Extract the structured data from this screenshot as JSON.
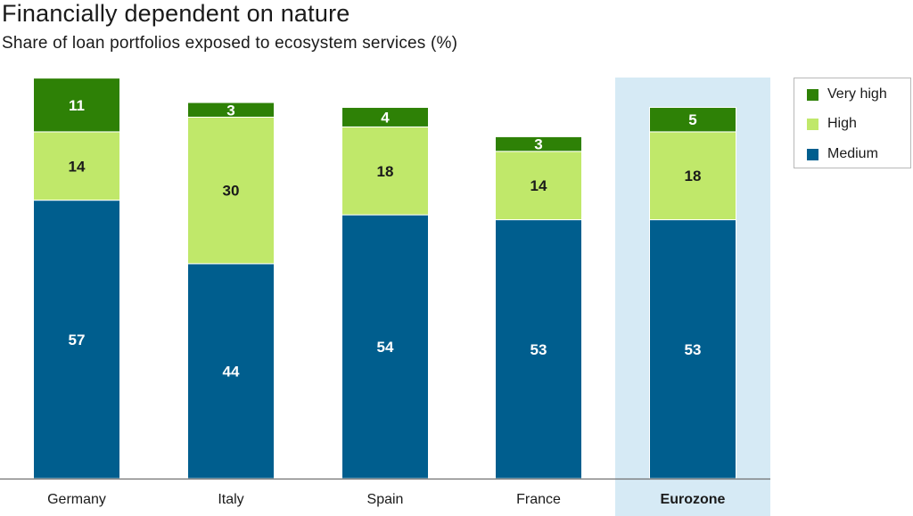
{
  "title": "Financially dependent on nature",
  "subtitle": "Share of loan portfolios exposed to ecosystem services (%)",
  "chart_data": {
    "type": "bar",
    "stacked": true,
    "categories": [
      "Germany",
      "Italy",
      "Spain",
      "France",
      "Eurozone"
    ],
    "highlighted_category": "Eurozone",
    "series": [
      {
        "name": "Medium",
        "values": [
          57,
          44,
          54,
          53,
          53
        ],
        "color": "#005e8e",
        "label_color": "#ffffff"
      },
      {
        "name": "High",
        "values": [
          14,
          30,
          18,
          14,
          18
        ],
        "color": "#c0e86a",
        "label_color": "#1a1a1a"
      },
      {
        "name": "Very high",
        "values": [
          11,
          3,
          4,
          3,
          5
        ],
        "color": "#2e8106",
        "label_color": "#ffffff"
      }
    ],
    "legend_order": [
      "Very high",
      "High",
      "Medium"
    ],
    "legend_position": "top-right",
    "ylim": [
      0,
      82
    ],
    "grid": false,
    "highlight_color": "#d6eaf5"
  }
}
